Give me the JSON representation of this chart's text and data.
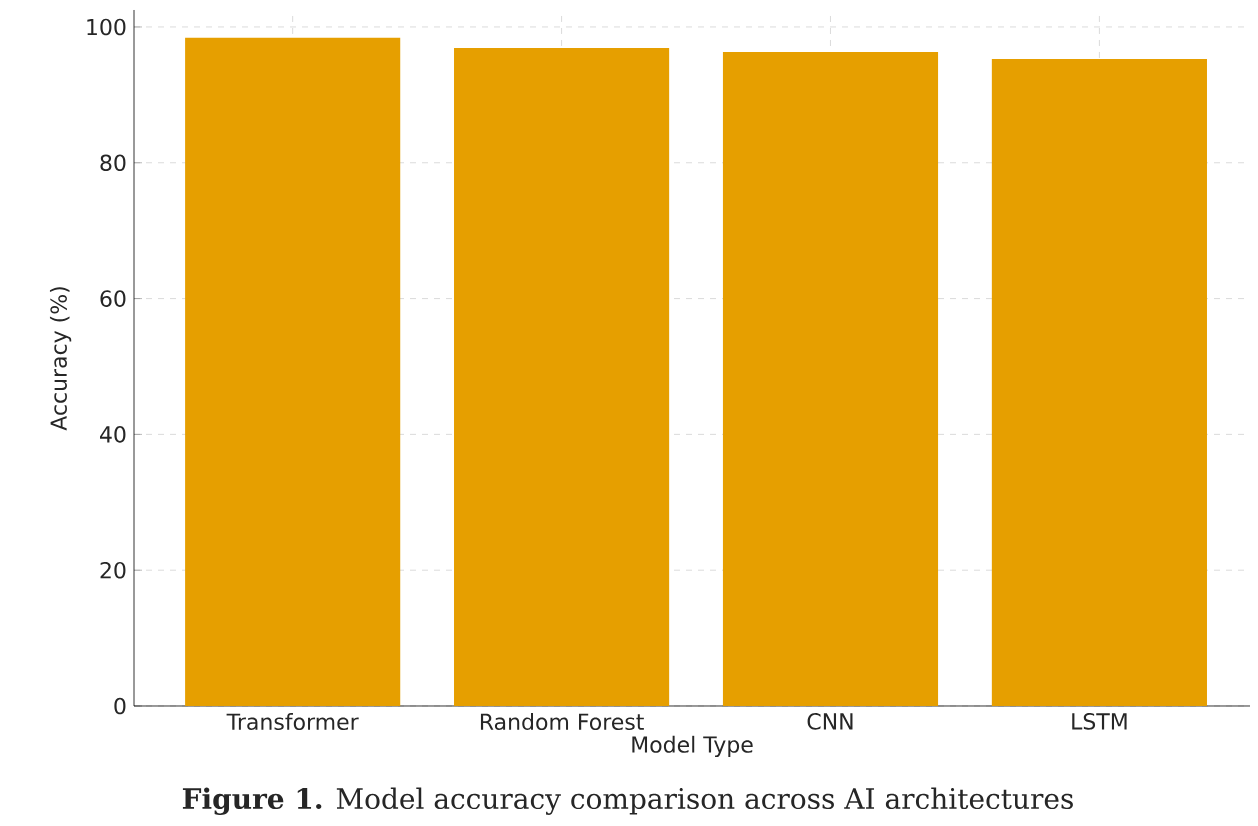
{
  "chart_data": {
    "type": "bar",
    "ylabel": "Accuracy (%)",
    "xlabel": "Model Type",
    "categories": [
      "Transformer",
      "Random Forest",
      "CNN",
      "LSTM"
    ],
    "values": [
      98.4,
      96.9,
      96.3,
      95.3
    ],
    "color": "#e69f00",
    "ylim": [
      0,
      102.5
    ],
    "yticks": [
      0,
      20,
      40,
      60,
      80,
      100
    ],
    "grid": true,
    "annotations": [
      "**Figure 1.** Model accuracy comparison across AI architectures"
    ]
  }
}
